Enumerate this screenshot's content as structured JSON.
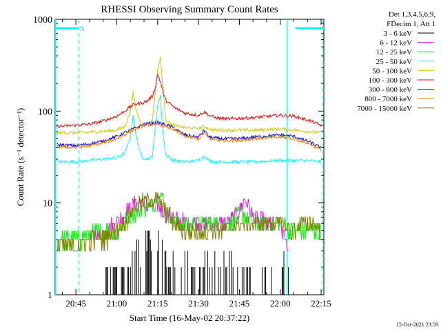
{
  "chart_data": {
    "type": "line",
    "title": "RHESSI Observing Summary Count Rates",
    "xlabel": "Start Time (16-May-02 20:37:22)",
    "ylabel": "Count Rate (s⁻¹ detector⁻¹)",
    "yscale": "log",
    "ylim": [
      1,
      1000
    ],
    "xlim": [
      "20:37:22",
      "22:16:00"
    ],
    "x_ticks": [
      "20:45",
      "21:00",
      "21:15",
      "21:30",
      "21:45",
      "22:00",
      "22:15"
    ],
    "y_ticks": [
      "1",
      "10",
      "100",
      "1000"
    ],
    "legend_header": [
      "Det 1,3,4,5,6,9,",
      "FDecim 1, Att 1"
    ],
    "legend_position": "right",
    "timestamp": "15-Oct-2021 23:59",
    "annotations": [
      {
        "text": "N",
        "time": "20:46:30",
        "y": 800
      }
    ],
    "shading_bars": {
      "color": "#00ffff",
      "y": 800,
      "spans": [
        [
          "20:37:22",
          "20:46:00"
        ],
        [
          "22:05:30",
          "22:16:00"
        ]
      ]
    },
    "vertical_lines": {
      "color": "#00ffff",
      "solid": [
        "20:37:30",
        "22:02:30"
      ],
      "dashed": [
        "20:46:00",
        "22:15:30"
      ]
    },
    "series": [
      {
        "name": "3 - 6 keV",
        "color": "#000000",
        "style": "sparse",
        "x": [
          "20:48",
          "20:54",
          "20:57",
          "21:00",
          "21:03",
          "21:06",
          "21:09",
          "21:12",
          "21:15",
          "21:18",
          "21:21",
          "21:24",
          "21:30",
          "21:36",
          "21:42",
          "21:48",
          "21:54",
          "22:00",
          "22:03"
        ],
        "y": [
          1.0,
          1.0,
          2.0,
          2.0,
          2.0,
          3.0,
          3.0,
          4.0,
          5.0,
          3.0,
          2.0,
          2.0,
          2.0,
          2.0,
          2.0,
          2.0,
          2.0,
          2.0,
          2.0
        ]
      },
      {
        "name": "6 - 12 keV",
        "color": "#ff00ff",
        "x": [
          "20:50",
          "20:55",
          "21:00",
          "21:05",
          "21:08",
          "21:12",
          "21:15",
          "21:17",
          "21:20",
          "21:25",
          "21:30",
          "21:35",
          "21:40",
          "21:44",
          "21:47",
          "21:50",
          "21:55",
          "22:00",
          "22:03"
        ],
        "y": [
          4.0,
          5.0,
          6.0,
          9.0,
          10.0,
          9.0,
          10.0,
          8.0,
          7.0,
          6.0,
          6.0,
          6.0,
          6.0,
          7.0,
          11.0,
          7.0,
          6.0,
          6.0,
          3.0
        ]
      },
      {
        "name": "12 - 25 keV",
        "color": "#00ff00",
        "x": [
          "20:38",
          "20:45",
          "20:50",
          "20:55",
          "21:00",
          "21:05",
          "21:10",
          "21:14",
          "21:16",
          "21:18",
          "21:22",
          "21:28",
          "21:35",
          "21:42",
          "21:46",
          "21:50",
          "21:55",
          "22:00",
          "22:05",
          "22:10",
          "22:15"
        ],
        "y": [
          4.0,
          4.0,
          4.5,
          5.0,
          5.0,
          7.0,
          9.0,
          10.0,
          14.0,
          8.0,
          6.0,
          6.0,
          6.0,
          6.0,
          8.0,
          6.0,
          6.0,
          6.0,
          5.0,
          5.0,
          5.0
        ]
      },
      {
        "name": "25 - 50 keV",
        "color": "#00ffff",
        "x": [
          "20:38",
          "20:45",
          "20:50",
          "20:55",
          "21:00",
          "21:03",
          "21:05",
          "21:06",
          "21:07",
          "21:09",
          "21:11",
          "21:13",
          "21:14",
          "21:15",
          "21:16",
          "21:17",
          "21:18",
          "21:21",
          "21:25",
          "21:30",
          "21:32",
          "21:34",
          "21:36",
          "21:40",
          "21:50",
          "22:00",
          "22:05",
          "22:10",
          "22:15"
        ],
        "y": [
          28,
          28,
          29,
          30,
          31,
          35,
          52,
          90,
          55,
          32,
          30,
          32,
          60,
          120,
          145,
          55,
          33,
          29,
          28,
          29,
          32,
          29,
          28,
          28,
          28,
          29,
          29,
          29,
          28
        ]
      },
      {
        "name": "50 - 100 keV",
        "color": "#cccc00",
        "x": [
          "20:38",
          "20:45",
          "20:50",
          "20:55",
          "21:00",
          "21:03",
          "21:05",
          "21:06",
          "21:07",
          "21:09",
          "21:11",
          "21:13",
          "21:14",
          "21:15",
          "21:16",
          "21:17",
          "21:18",
          "21:21",
          "21:25",
          "21:30",
          "21:32",
          "21:34",
          "21:36",
          "21:40",
          "21:50",
          "22:00",
          "22:05",
          "22:10",
          "22:15"
        ],
        "y": [
          58,
          58,
          59,
          60,
          62,
          68,
          100,
          160,
          105,
          72,
          72,
          78,
          150,
          280,
          380,
          170,
          80,
          70,
          66,
          65,
          68,
          64,
          62,
          62,
          62,
          64,
          62,
          60,
          58
        ]
      },
      {
        "name": "100 - 300 keV",
        "color": "#ff0000",
        "x": [
          "20:38",
          "20:45",
          "20:50",
          "20:55",
          "21:00",
          "21:03",
          "21:05",
          "21:07",
          "21:09",
          "21:11",
          "21:13",
          "21:14",
          "21:15",
          "21:16",
          "21:17",
          "21:18",
          "21:21",
          "21:25",
          "21:30",
          "21:32",
          "21:34",
          "21:36",
          "21:40",
          "21:50",
          "22:00",
          "22:05",
          "22:10",
          "22:15"
        ],
        "y": [
          68,
          70,
          72,
          78,
          88,
          100,
          112,
          120,
          122,
          128,
          145,
          175,
          250,
          210,
          160,
          130,
          110,
          95,
          90,
          98,
          90,
          85,
          82,
          85,
          90,
          88,
          80,
          70
        ]
      },
      {
        "name": "300 - 800 keV",
        "color": "#0000ff",
        "x": [
          "20:38",
          "20:45",
          "20:50",
          "20:55",
          "21:00",
          "21:05",
          "21:10",
          "21:15",
          "21:20",
          "21:25",
          "21:30",
          "21:32",
          "21:34",
          "21:38",
          "21:45",
          "21:50",
          "22:00",
          "22:05",
          "22:10",
          "22:15"
        ],
        "y": [
          43,
          42,
          44,
          47,
          53,
          62,
          72,
          75,
          68,
          55,
          52,
          62,
          52,
          50,
          50,
          52,
          55,
          53,
          47,
          40
        ]
      },
      {
        "name": "800 - 7000 keV",
        "color": "#ff8000",
        "x": [
          "20:38",
          "20:45",
          "20:50",
          "20:55",
          "21:00",
          "21:05",
          "21:10",
          "21:15",
          "21:20",
          "21:25",
          "21:30",
          "21:32",
          "21:34",
          "21:38",
          "21:45",
          "21:50",
          "22:00",
          "22:05",
          "22:10",
          "22:15"
        ],
        "y": [
          41,
          40,
          42,
          45,
          50,
          60,
          70,
          72,
          65,
          53,
          50,
          58,
          50,
          48,
          48,
          50,
          52,
          50,
          45,
          38
        ]
      },
      {
        "name": "7000 - 15000 keV",
        "color": "#808000",
        "x": [
          "20:38",
          "20:45",
          "20:50",
          "20:55",
          "21:00",
          "21:03",
          "21:06",
          "21:09",
          "21:12",
          "21:15",
          "21:18",
          "21:21",
          "21:25",
          "21:30",
          "21:35",
          "21:40",
          "21:45",
          "21:50",
          "21:55",
          "22:00",
          "22:04",
          "22:08",
          "22:12",
          "22:15"
        ],
        "y": [
          3.5,
          3.5,
          4.0,
          4.0,
          5.0,
          6.0,
          9.0,
          10.0,
          11.0,
          11.0,
          8.0,
          6.0,
          5.0,
          5.0,
          5.0,
          5.0,
          6.0,
          6.0,
          6.0,
          6.0,
          5.0,
          6.0,
          6.0,
          5.0
        ]
      }
    ]
  }
}
